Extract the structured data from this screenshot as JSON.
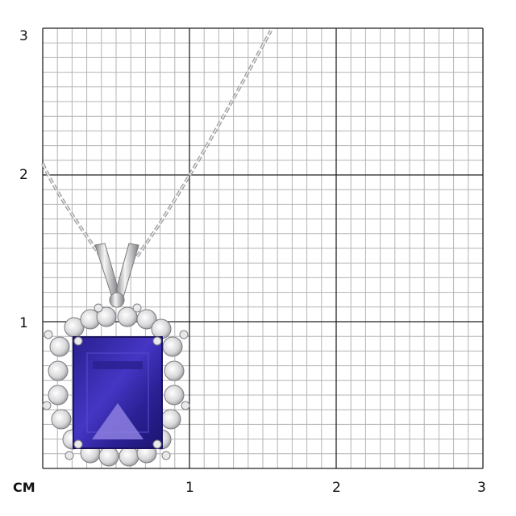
{
  "scale": {
    "unit_label": "CM",
    "x_ticks": [
      "1",
      "2",
      "3"
    ],
    "y_ticks": [
      "1",
      "2",
      "3"
    ],
    "minor_divisions_per_unit": 10
  },
  "colors": {
    "background": "#ffffff",
    "minor_grid": "#b4b4b4",
    "major_grid": "#222222",
    "gemstone": "#3a2fa8",
    "metal": "#c9cacc"
  },
  "product": {
    "type": "pendant-necklace",
    "gem_icon": "emerald-cut-tanzanite-icon",
    "halo_icon": "diamond-halo-icon"
  }
}
